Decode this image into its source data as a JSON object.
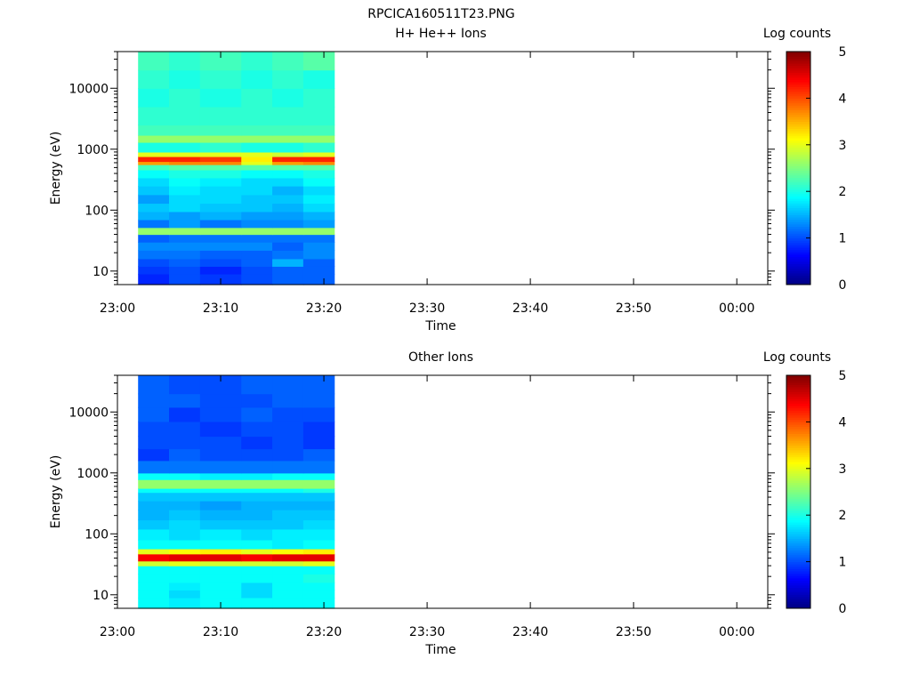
{
  "figure_title": "RPCICA160511T23.PNG",
  "chart_data": [
    {
      "type": "heatmap",
      "title": "H+ He++ Ions",
      "xlabel": "Time",
      "ylabel": "Energy (eV)",
      "x_ticks": [
        "23:00",
        "23:10",
        "23:20",
        "23:30",
        "23:40",
        "23:50",
        "00:00"
      ],
      "x_range": [
        "23:00",
        "00:03"
      ],
      "y_scale": "log",
      "y_ticks": [
        10,
        100,
        1000,
        10000
      ],
      "y_range": [
        6,
        40000
      ],
      "data_time_range": [
        "23:02",
        "23:21"
      ],
      "time_bins": [
        "23:02",
        "23:05",
        "23:08",
        "23:12",
        "23:15",
        "23:18"
      ],
      "energy_bins": [
        {
          "e_low": 6,
          "e_high": 9,
          "log_counts": [
            0.8,
            1.0,
            0.9,
            1.0,
            1.1,
            1.1
          ]
        },
        {
          "e_low": 9,
          "e_high": 12,
          "log_counts": [
            0.9,
            1.0,
            0.8,
            1.0,
            1.1,
            1.1
          ]
        },
        {
          "e_low": 12,
          "e_high": 16,
          "log_counts": [
            1.0,
            1.1,
            1.0,
            1.1,
            1.5,
            1.1
          ]
        },
        {
          "e_low": 16,
          "e_high": 22,
          "log_counts": [
            1.2,
            1.2,
            1.1,
            1.1,
            1.2,
            1.3
          ]
        },
        {
          "e_low": 22,
          "e_high": 30,
          "log_counts": [
            1.3,
            1.3,
            1.3,
            1.3,
            1.1,
            1.3
          ]
        },
        {
          "e_low": 30,
          "e_high": 40,
          "log_counts": [
            1.1,
            1.2,
            1.2,
            1.2,
            1.2,
            1.2
          ]
        },
        {
          "e_low": 40,
          "e_high": 52,
          "log_counts": [
            2.6,
            2.6,
            2.6,
            2.6,
            2.6,
            2.6
          ]
        },
        {
          "e_low": 52,
          "e_high": 70,
          "log_counts": [
            1.2,
            1.4,
            1.2,
            1.3,
            1.3,
            1.4
          ]
        },
        {
          "e_low": 70,
          "e_high": 95,
          "log_counts": [
            1.5,
            1.4,
            1.5,
            1.4,
            1.4,
            1.5
          ]
        },
        {
          "e_low": 95,
          "e_high": 130,
          "log_counts": [
            1.6,
            1.7,
            1.6,
            1.6,
            1.5,
            1.7
          ]
        },
        {
          "e_low": 130,
          "e_high": 180,
          "log_counts": [
            1.4,
            1.7,
            1.7,
            1.6,
            1.6,
            1.8
          ]
        },
        {
          "e_low": 180,
          "e_high": 250,
          "log_counts": [
            1.6,
            1.8,
            1.7,
            1.7,
            1.5,
            1.7
          ]
        },
        {
          "e_low": 250,
          "e_high": 340,
          "log_counts": [
            1.7,
            1.9,
            1.8,
            1.7,
            1.7,
            1.9
          ]
        },
        {
          "e_low": 340,
          "e_high": 460,
          "log_counts": [
            1.9,
            2.0,
            2.0,
            1.9,
            1.9,
            2.0
          ]
        },
        {
          "e_low": 460,
          "e_high": 560,
          "log_counts": [
            2.2,
            2.3,
            2.3,
            2.3,
            2.3,
            2.3
          ]
        },
        {
          "e_low": 560,
          "e_high": 630,
          "log_counts": [
            3.6,
            3.7,
            3.7,
            3.0,
            3.6,
            3.7
          ]
        },
        {
          "e_low": 630,
          "e_high": 760,
          "log_counts": [
            4.2,
            4.2,
            4.1,
            3.2,
            4.2,
            4.2
          ]
        },
        {
          "e_low": 760,
          "e_high": 900,
          "log_counts": [
            3.0,
            3.0,
            3.0,
            3.0,
            2.9,
            3.0
          ]
        },
        {
          "e_low": 900,
          "e_high": 1300,
          "log_counts": [
            2.0,
            2.0,
            2.1,
            2.0,
            2.0,
            2.1
          ]
        },
        {
          "e_low": 1300,
          "e_high": 1700,
          "log_counts": [
            2.6,
            2.6,
            2.6,
            2.6,
            2.6,
            2.6
          ]
        },
        {
          "e_low": 1700,
          "e_high": 2500,
          "log_counts": [
            2.2,
            2.2,
            2.2,
            2.2,
            2.2,
            2.2
          ]
        },
        {
          "e_low": 2500,
          "e_high": 5000,
          "log_counts": [
            2.1,
            2.1,
            2.1,
            2.1,
            2.1,
            2.1
          ]
        },
        {
          "e_low": 5000,
          "e_high": 10000,
          "log_counts": [
            2.0,
            2.1,
            2.0,
            2.1,
            2.0,
            2.1
          ]
        },
        {
          "e_low": 10000,
          "e_high": 20000,
          "log_counts": [
            2.1,
            2.0,
            2.1,
            2.0,
            2.1,
            2.0
          ]
        },
        {
          "e_low": 20000,
          "e_high": 40000,
          "log_counts": [
            2.2,
            2.1,
            2.2,
            2.1,
            2.2,
            2.3
          ]
        }
      ],
      "colorbar": {
        "label": "Log counts",
        "range": [
          0,
          5
        ],
        "ticks": [
          0,
          1,
          2,
          3,
          4,
          5
        ],
        "colormap": "jet"
      }
    },
    {
      "type": "heatmap",
      "title": "Other Ions",
      "xlabel": "Time",
      "ylabel": "Energy (eV)",
      "x_ticks": [
        "23:00",
        "23:10",
        "23:20",
        "23:30",
        "23:40",
        "23:50",
        "00:00"
      ],
      "x_range": [
        "23:00",
        "00:03"
      ],
      "y_scale": "log",
      "y_ticks": [
        10,
        100,
        1000,
        10000
      ],
      "y_range": [
        6,
        40000
      ],
      "data_time_range": [
        "23:02",
        "23:21"
      ],
      "time_bins": [
        "23:02",
        "23:05",
        "23:08",
        "23:12",
        "23:15",
        "23:18"
      ],
      "energy_bins": [
        {
          "e_low": 6,
          "e_high": 9,
          "log_counts": [
            1.9,
            1.8,
            1.9,
            1.9,
            1.9,
            1.9
          ]
        },
        {
          "e_low": 9,
          "e_high": 12,
          "log_counts": [
            1.9,
            1.7,
            1.9,
            1.7,
            1.9,
            1.9
          ]
        },
        {
          "e_low": 12,
          "e_high": 16,
          "log_counts": [
            1.9,
            1.8,
            1.9,
            1.7,
            1.9,
            1.9
          ]
        },
        {
          "e_low": 16,
          "e_high": 22,
          "log_counts": [
            1.9,
            1.9,
            1.9,
            1.9,
            1.9,
            2.0
          ]
        },
        {
          "e_low": 22,
          "e_high": 30,
          "log_counts": [
            1.9,
            1.9,
            1.9,
            1.9,
            1.9,
            1.9
          ]
        },
        {
          "e_low": 30,
          "e_high": 36,
          "log_counts": [
            2.9,
            3.0,
            2.9,
            2.9,
            2.9,
            3.0
          ]
        },
        {
          "e_low": 36,
          "e_high": 47,
          "log_counts": [
            4.4,
            4.5,
            4.5,
            4.4,
            4.5,
            4.5
          ]
        },
        {
          "e_low": 47,
          "e_high": 57,
          "log_counts": [
            3.0,
            3.1,
            3.2,
            3.0,
            3.1,
            3.2
          ]
        },
        {
          "e_low": 57,
          "e_high": 80,
          "log_counts": [
            1.9,
            1.9,
            1.9,
            1.9,
            1.8,
            1.9
          ]
        },
        {
          "e_low": 80,
          "e_high": 120,
          "log_counts": [
            1.8,
            1.7,
            1.8,
            1.7,
            1.8,
            1.8
          ]
        },
        {
          "e_low": 120,
          "e_high": 170,
          "log_counts": [
            1.6,
            1.7,
            1.6,
            1.6,
            1.6,
            1.7
          ]
        },
        {
          "e_low": 170,
          "e_high": 250,
          "log_counts": [
            1.5,
            1.6,
            1.5,
            1.5,
            1.6,
            1.6
          ]
        },
        {
          "e_low": 250,
          "e_high": 350,
          "log_counts": [
            1.5,
            1.5,
            1.4,
            1.5,
            1.5,
            1.5
          ]
        },
        {
          "e_low": 350,
          "e_high": 480,
          "log_counts": [
            1.6,
            1.6,
            1.6,
            1.6,
            1.6,
            1.6
          ]
        },
        {
          "e_low": 480,
          "e_high": 560,
          "log_counts": [
            1.9,
            1.9,
            1.9,
            1.9,
            1.9,
            2.0
          ]
        },
        {
          "e_low": 560,
          "e_high": 780,
          "log_counts": [
            2.6,
            2.6,
            2.6,
            2.6,
            2.6,
            2.6
          ]
        },
        {
          "e_low": 780,
          "e_high": 1000,
          "log_counts": [
            1.9,
            1.9,
            1.8,
            1.8,
            1.9,
            1.9
          ]
        },
        {
          "e_low": 1000,
          "e_high": 1600,
          "log_counts": [
            1.2,
            1.2,
            1.2,
            1.2,
            1.2,
            1.2
          ]
        },
        {
          "e_low": 1600,
          "e_high": 2500,
          "log_counts": [
            0.9,
            1.1,
            1.0,
            1.0,
            1.0,
            1.1
          ]
        },
        {
          "e_low": 2500,
          "e_high": 4000,
          "log_counts": [
            1.0,
            1.0,
            1.0,
            0.9,
            1.0,
            0.9
          ]
        },
        {
          "e_low": 4000,
          "e_high": 7000,
          "log_counts": [
            1.0,
            1.0,
            0.9,
            1.0,
            1.0,
            0.9
          ]
        },
        {
          "e_low": 7000,
          "e_high": 12000,
          "log_counts": [
            1.1,
            0.9,
            1.0,
            1.1,
            1.0,
            1.0
          ]
        },
        {
          "e_low": 12000,
          "e_high": 20000,
          "log_counts": [
            1.1,
            1.1,
            1.0,
            1.0,
            1.1,
            1.1
          ]
        },
        {
          "e_low": 20000,
          "e_high": 40000,
          "log_counts": [
            1.1,
            1.0,
            1.0,
            1.1,
            1.1,
            1.1
          ]
        }
      ],
      "colorbar": {
        "label": "Log counts",
        "range": [
          0,
          5
        ],
        "ticks": [
          0,
          1,
          2,
          3,
          4,
          5
        ],
        "colormap": "jet"
      }
    }
  ]
}
